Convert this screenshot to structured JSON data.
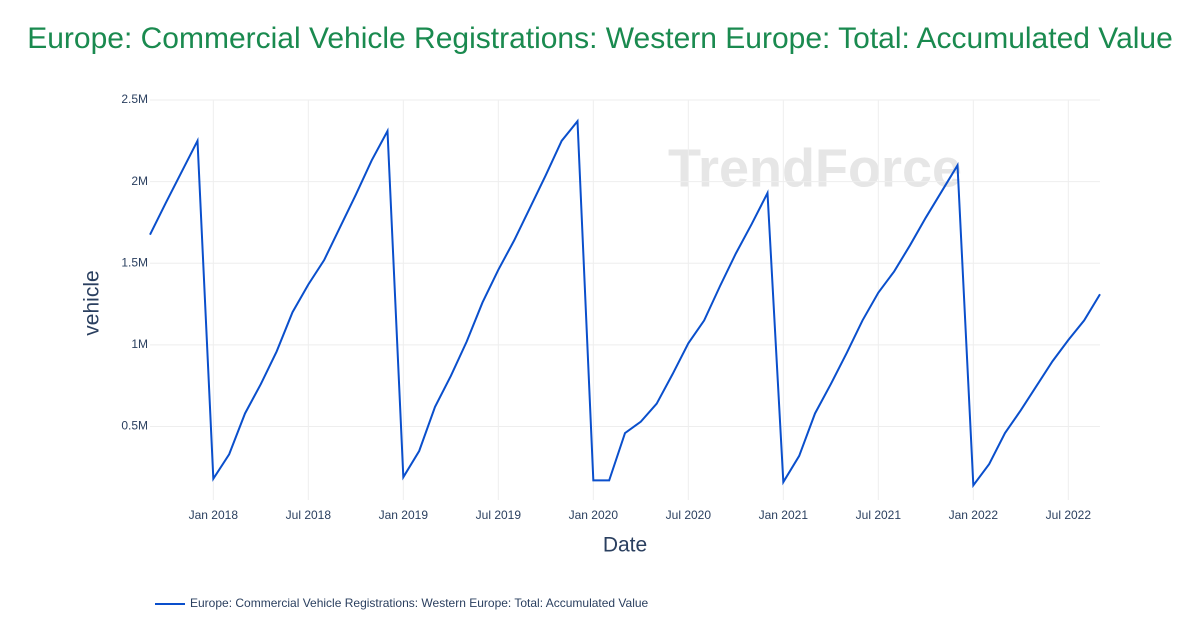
{
  "chart_data": {
    "type": "line",
    "title": "Europe: Commercial Vehicle Registrations: Western Europe: Total: Accumulated Value",
    "x_label": "Date",
    "y_label": "vehicle",
    "watermark": "TrendForce",
    "x": [
      "2017-09",
      "2017-10",
      "2017-11",
      "2017-12",
      "2018-01",
      "2018-02",
      "2018-03",
      "2018-04",
      "2018-05",
      "2018-06",
      "2018-07",
      "2018-08",
      "2018-09",
      "2018-10",
      "2018-11",
      "2018-12",
      "2019-01",
      "2019-02",
      "2019-03",
      "2019-04",
      "2019-05",
      "2019-06",
      "2019-07",
      "2019-08",
      "2019-09",
      "2019-10",
      "2019-11",
      "2019-12",
      "2020-01",
      "2020-02",
      "2020-03",
      "2020-04",
      "2020-05",
      "2020-06",
      "2020-07",
      "2020-08",
      "2020-09",
      "2020-10",
      "2020-11",
      "2020-12",
      "2021-01",
      "2021-02",
      "2021-03",
      "2021-04",
      "2021-05",
      "2021-06",
      "2021-07",
      "2021-08",
      "2021-09",
      "2021-10",
      "2021-11",
      "2021-12",
      "2022-01",
      "2022-02",
      "2022-03",
      "2022-04",
      "2022-05",
      "2022-06",
      "2022-07",
      "2022-08",
      "2022-09"
    ],
    "series": [
      {
        "name": "Europe: Commercial Vehicle Registrations: Western Europe: Total: Accumulated Value",
        "color": "#0a4fcc",
        "values": [
          1675000,
          1870000,
          2060000,
          2250000,
          180000,
          330000,
          580000,
          760000,
          960000,
          1200000,
          1370000,
          1520000,
          1720000,
          1920000,
          2130000,
          2310000,
          190000,
          350000,
          620000,
          810000,
          1020000,
          1260000,
          1460000,
          1640000,
          1840000,
          2040000,
          2250000,
          2370000,
          170000,
          170000,
          460000,
          530000,
          640000,
          820000,
          1010000,
          1150000,
          1360000,
          1560000,
          1740000,
          1930000,
          160000,
          320000,
          580000,
          760000,
          950000,
          1150000,
          1320000,
          1450000,
          1610000,
          1780000,
          1940000,
          2100000,
          140000,
          270000,
          460000,
          600000,
          750000,
          900000,
          1030000,
          1150000,
          1310000
        ]
      }
    ],
    "xlim": [
      "2017-09",
      "2022-09"
    ],
    "xticks": [
      {
        "value": "2018-01",
        "label": "Jan 2018"
      },
      {
        "value": "2018-07",
        "label": "Jul 2018"
      },
      {
        "value": "2019-01",
        "label": "Jan 2019"
      },
      {
        "value": "2019-07",
        "label": "Jul 2019"
      },
      {
        "value": "2020-01",
        "label": "Jan 2020"
      },
      {
        "value": "2020-07",
        "label": "Jul 2020"
      },
      {
        "value": "2021-01",
        "label": "Jan 2021"
      },
      {
        "value": "2021-07",
        "label": "Jul 2021"
      },
      {
        "value": "2022-01",
        "label": "Jan 2022"
      },
      {
        "value": "2022-07",
        "label": "Jul 2022"
      }
    ],
    "ylim": [
      50000,
      2500000
    ],
    "yticks": [
      {
        "value": 500000,
        "label": "0.5M"
      },
      {
        "value": 1000000,
        "label": "1M"
      },
      {
        "value": 1500000,
        "label": "1.5M"
      },
      {
        "value": 2000000,
        "label": "2M"
      },
      {
        "value": 2500000,
        "label": "2.5M"
      }
    ],
    "grid": true,
    "legend": "bottom-left"
  }
}
